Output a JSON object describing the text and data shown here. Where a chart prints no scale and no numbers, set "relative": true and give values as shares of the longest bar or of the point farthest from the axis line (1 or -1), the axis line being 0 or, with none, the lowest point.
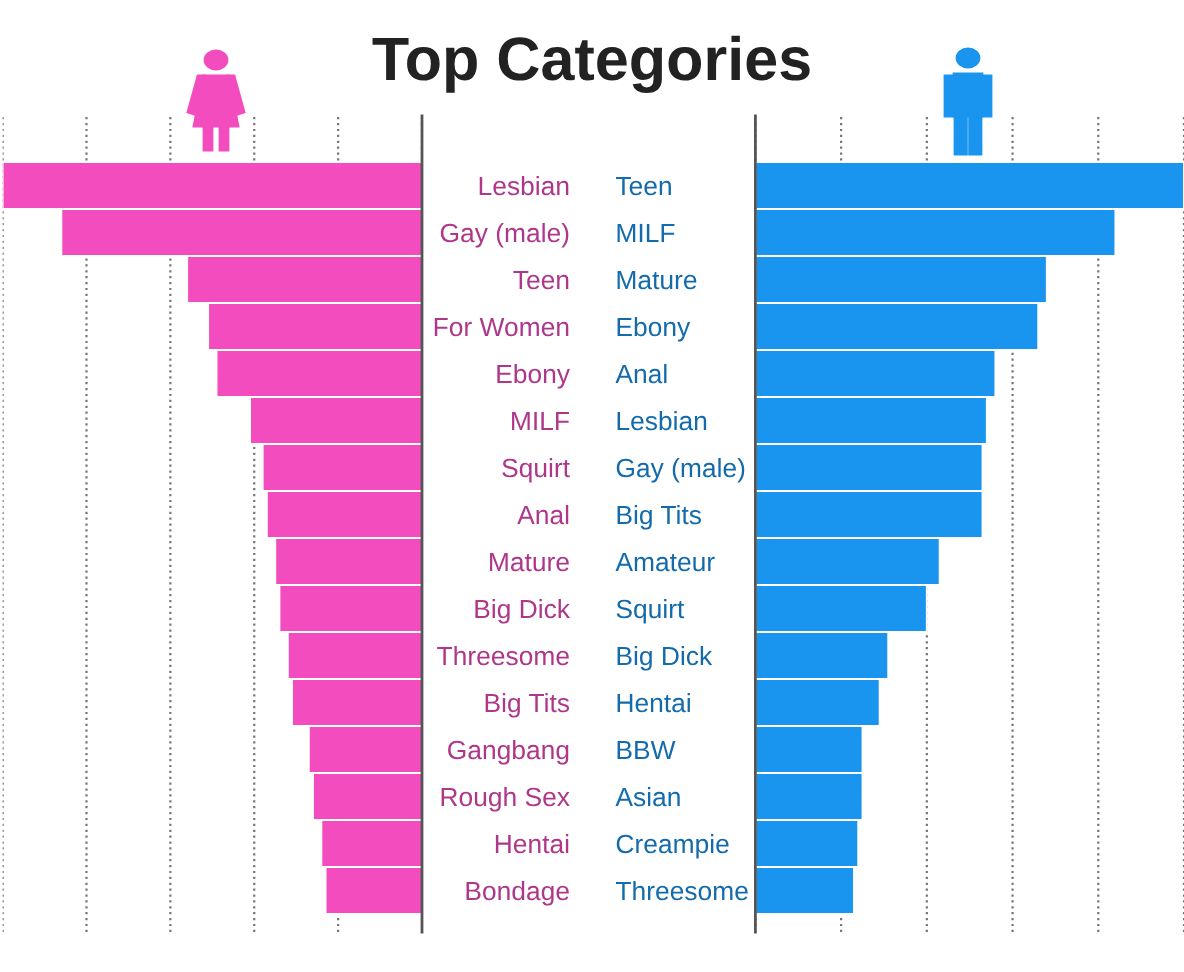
{
  "chart_data": [
    {
      "type": "bar",
      "title": "Top Categories",
      "orientation": "horizontal",
      "relative": true,
      "grid": "x",
      "color": "#f24cbf",
      "categories": [
        "Lesbian",
        "Gay (male)",
        "Teen",
        "For Women",
        "Ebony",
        "MILF",
        "Squirt",
        "Anal",
        "Mature",
        "Big Dick",
        "Threesome",
        "Big Tits",
        "Gangbang",
        "Rough Sex",
        "Hentai",
        "Bondage"
      ],
      "values": [
        -1,
        -0.86,
        -0.56,
        -0.51,
        -0.49,
        -0.41,
        -0.38,
        -0.37,
        -0.35,
        -0.34,
        -0.32,
        -0.31,
        -0.27,
        -0.26,
        -0.24,
        -0.23
      ]
    },
    {
      "type": "bar",
      "orientation": "horizontal",
      "relative": true,
      "grid": "x",
      "color": "#1a95ef",
      "categories": [
        "Teen",
        "MILF",
        "Mature",
        "Ebony",
        "Anal",
        "Lesbian",
        "Gay (male)",
        "Big Tits",
        "Amateur",
        "Squirt",
        "Big Dick",
        "Hentai",
        "BBW",
        "Asian",
        "Creampie",
        "Threesome"
      ],
      "values": [
        1,
        0.84,
        0.68,
        0.66,
        0.56,
        0.54,
        0.53,
        0.53,
        0.43,
        0.4,
        0.31,
        0.29,
        0.25,
        0.25,
        0.24,
        0.23
      ]
    }
  ]
}
